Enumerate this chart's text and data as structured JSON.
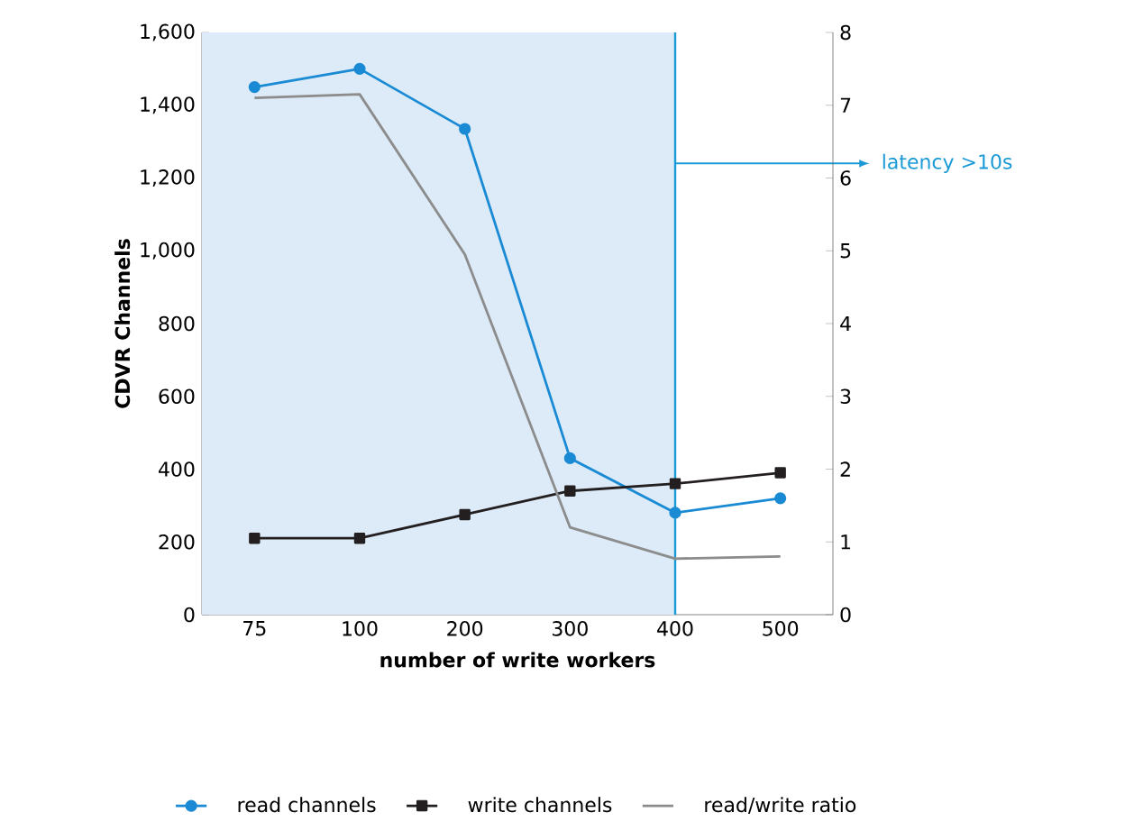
{
  "chart_data": {
    "type": "line",
    "categories": [
      "75",
      "100",
      "200",
      "300",
      "400",
      "500"
    ],
    "xlabel": "number of write workers",
    "ylabel": "CDVR Channels",
    "ylim": [
      0,
      1600
    ],
    "yticks": [
      0,
      200,
      400,
      600,
      800,
      {
        "value": 1000,
        "label": "1,000"
      },
      {
        "value": 1200,
        "label": "1,200"
      },
      {
        "value": 1400,
        "label": "1,400"
      },
      {
        "value": 1600,
        "label": "1,600"
      }
    ],
    "y2lim": [
      0,
      8
    ],
    "y2ticks": [
      0,
      1,
      2,
      3,
      4,
      5,
      6,
      7,
      8
    ],
    "series": [
      {
        "name": "read channels",
        "color": "#1a8ad4",
        "marker": "circle",
        "values": [
          1450,
          1500,
          1335,
          430,
          280,
          320
        ]
      },
      {
        "name": "write channels",
        "color": "#231f20",
        "marker": "square",
        "values": [
          210,
          210,
          275,
          340,
          360,
          390
        ]
      },
      {
        "name": "read/write ratio",
        "color": "#8c8c8c",
        "marker": "none",
        "axis": "y2",
        "values": [
          7.1,
          7.15,
          4.95,
          1.2,
          0.77,
          0.8
        ]
      }
    ],
    "bands": [
      {
        "axis": "x",
        "from": "75",
        "to": "400",
        "color": "#dcebf7"
      }
    ],
    "ref_lines": [
      {
        "axis": "x",
        "value": "400",
        "label": "latency >10s",
        "color": "#1a9ad6"
      }
    ],
    "legend": "bottom",
    "grid": false
  }
}
